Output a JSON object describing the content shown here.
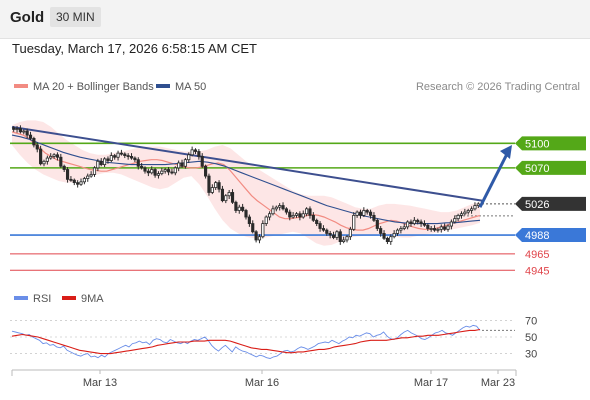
{
  "header": {
    "title": "Gold",
    "timeframe": "30 MIN"
  },
  "datetime": "Tuesday, March 17, 2026 6:58:15 AM CET",
  "legend": {
    "ma20": "MA 20 + Bollinger Bands",
    "ma50": "MA 50",
    "credit": "Research © 2026 Trading Central",
    "rsi": "RSI",
    "rsi_ma": "9MA"
  },
  "colors": {
    "ma20": "#f28b82",
    "ma50": "#2f4f8f",
    "bollinger_fill": "#fde0e0",
    "resistance": "#54a818",
    "support": "#3a78d8",
    "target": "#e0454b",
    "current": "#333333",
    "trendline": "#3d4f8f",
    "rsi": "#6a8ee8",
    "rsi_ma": "#d91e18",
    "candle": "#2a2a2a"
  },
  "chart_data": [
    {
      "type": "candlestick",
      "instrument": "Gold",
      "timeframe": "30 MIN",
      "xlabel": "",
      "ylabel": "",
      "x_ticks": [
        "Mar 13",
        "Mar 16",
        "Mar 17",
        "Mar 23"
      ],
      "y_range": [
        4938,
        5148
      ],
      "price_levels": [
        {
          "label": "5100",
          "value": 5100,
          "kind": "resistance"
        },
        {
          "label": "5070",
          "value": 5070,
          "kind": "resistance"
        },
        {
          "label": "5026",
          "value": 5026,
          "kind": "current"
        },
        {
          "label": "4988",
          "value": 4988,
          "kind": "support"
        },
        {
          "label": "4965",
          "value": 4965,
          "kind": "target"
        },
        {
          "label": "4945",
          "value": 4945,
          "kind": "target"
        }
      ],
      "close_series": [
        5117,
        5118,
        5114,
        5115,
        5110,
        5106,
        5098,
        5093,
        5075,
        5078,
        5082,
        5084,
        5086,
        5083,
        5072,
        5068,
        5056,
        5055,
        5052,
        5050,
        5053,
        5057,
        5060,
        5062,
        5070,
        5078,
        5074,
        5081,
        5079,
        5085,
        5083,
        5088,
        5087,
        5085,
        5084,
        5082,
        5080,
        5072,
        5070,
        5066,
        5064,
        5068,
        5061,
        5063,
        5066,
        5068,
        5065,
        5064,
        5070,
        5076,
        5072,
        5080,
        5086,
        5092,
        5090,
        5084,
        5072,
        5060,
        5040,
        5046,
        5052,
        5044,
        5030,
        5036,
        5040,
        5028,
        5018,
        5022,
        5018,
        5010,
        5002,
        4992,
        4982,
        4986,
        5002,
        5010,
        5014,
        5020,
        5022,
        5024,
        5020,
        5016,
        5010,
        5012,
        5014,
        5010,
        5014,
        5020,
        5012,
        5006,
        5002,
        4996,
        4994,
        4990,
        4988,
        4985,
        4992,
        4980,
        4982,
        4986,
        4995,
        5012,
        5016,
        5012,
        5018,
        5016,
        5012,
        5006,
        4996,
        4990,
        4984,
        4980,
        4986,
        4990,
        4994,
        4996,
        4998,
        5004,
        5002,
        5006,
        5004,
        5002,
        5000,
        4996,
        4996,
        4994,
        4995,
        4998,
        4995,
        4999,
        5004,
        5008,
        5012,
        5014,
        5016,
        5018,
        5020,
        5024,
        5026
      ],
      "ma20": [
        5114,
        5112,
        5110,
        5106,
        5100,
        5094,
        5088,
        5084,
        5080,
        5078,
        5076,
        5074,
        5072,
        5070,
        5068,
        5067,
        5066,
        5066,
        5068,
        5070,
        5072,
        5074,
        5076,
        5078,
        5079,
        5080,
        5080,
        5079,
        5077,
        5075,
        5073,
        5071,
        5070,
        5070,
        5071,
        5073,
        5075,
        5076,
        5074,
        5068,
        5060,
        5052,
        5044,
        5036,
        5030,
        5025,
        5020,
        5015,
        5010,
        5008,
        5008,
        5009,
        5010,
        5012,
        5013,
        5012,
        5010,
        5007,
        5004,
        5000,
        4997,
        4995,
        4994,
        4994,
        4996,
        4999,
        5002,
        5004,
        5006,
        5005,
        5003,
        5000,
        4998,
        4996,
        4995,
        4995,
        4996,
        4998,
        5000,
        5002,
        5004,
        5006,
        5008,
        5010,
        5012
      ],
      "bollinger_upper": [
        5122,
        5126,
        5128,
        5128,
        5126,
        5120,
        5112,
        5104,
        5098,
        5092,
        5088,
        5086,
        5086,
        5088,
        5090,
        5092,
        5094,
        5096,
        5096,
        5096,
        5094,
        5092,
        5090,
        5090,
        5090,
        5092,
        5096,
        5098,
        5094,
        5086,
        5078,
        5072,
        5066,
        5060,
        5054,
        5048,
        5042,
        5038,
        5036,
        5036,
        5036,
        5034,
        5030,
        5026,
        5022,
        5020,
        5020,
        5024,
        5026,
        5026,
        5025,
        5024,
        5022,
        5020,
        5018,
        5016,
        5016,
        5018,
        5022,
        5026,
        5028
      ],
      "bollinger_lower": [
        5098,
        5086,
        5076,
        5068,
        5062,
        5058,
        5054,
        5052,
        5052,
        5056,
        5060,
        5062,
        5064,
        5064,
        5062,
        5058,
        5054,
        5050,
        5046,
        5044,
        5046,
        5052,
        5058,
        5060,
        5050,
        5036,
        5020,
        5006,
        4996,
        4990,
        4986,
        4984,
        4984,
        4986,
        4988,
        4990,
        4992,
        4990,
        4984,
        4978,
        4975,
        4976,
        4980,
        4984,
        4986,
        4987,
        4988,
        4989,
        4988,
        4986,
        4985,
        4985,
        4987,
        4989,
        4990,
        4992,
        4994,
        4996,
        4998,
        5000,
        5003
      ],
      "ma50": [
        5110,
        5108,
        5105,
        5101,
        5097,
        5093,
        5089,
        5086,
        5083,
        5081,
        5079,
        5077,
        5076,
        5075,
        5074,
        5074,
        5074,
        5074,
        5074,
        5075,
        5076,
        5077,
        5078,
        5077,
        5075,
        5072,
        5068,
        5064,
        5060,
        5056,
        5052,
        5048,
        5044,
        5040,
        5036,
        5032,
        5028,
        5024,
        5021,
        5018,
        5015,
        5012,
        5010,
        5008,
        5006,
        5004,
        5003,
        5002,
        5002,
        5002,
        5002,
        5003,
        5003,
        5004,
        5005,
        5006
      ]
    },
    {
      "type": "line",
      "title": "RSI",
      "xlabel": "",
      "ylabel": "",
      "y_ticks": [
        70,
        50,
        30
      ],
      "y_range": [
        15,
        85
      ],
      "series": [
        {
          "name": "RSI",
          "values": [
            57,
            56,
            55,
            54,
            52,
            53,
            50,
            48,
            46,
            42,
            43,
            40,
            41,
            38,
            37,
            39,
            34,
            32,
            30,
            28,
            27,
            29,
            30,
            26,
            27,
            25,
            28,
            26,
            30,
            32,
            34,
            36,
            38,
            40,
            38,
            42,
            43,
            45,
            43,
            44,
            41,
            46,
            48,
            47,
            44,
            43,
            47,
            45,
            43,
            42,
            44,
            42,
            45,
            47,
            46,
            48,
            50,
            46,
            40,
            36,
            33,
            37,
            40,
            36,
            32,
            38,
            35,
            33,
            32,
            30,
            28,
            26,
            28,
            27,
            25,
            24,
            26,
            27,
            30,
            33,
            34,
            32,
            33,
            36,
            38,
            37,
            35,
            37,
            39,
            42,
            43,
            44,
            43,
            46,
            44,
            42,
            45,
            47,
            50,
            49,
            52,
            51,
            53,
            55,
            54,
            50,
            52,
            53,
            56,
            51,
            48,
            47,
            49,
            53,
            56,
            58,
            55,
            53,
            51,
            48,
            47,
            49,
            52,
            55,
            56,
            58,
            55,
            54,
            52,
            55,
            58,
            61,
            63,
            62,
            64,
            63,
            58
          ]
        },
        {
          "name": "9MA",
          "values": [
            51,
            52,
            53,
            52,
            51,
            50,
            48,
            46,
            44,
            42,
            40,
            38,
            36,
            34,
            33,
            32,
            31,
            30,
            30,
            30,
            31,
            32,
            33,
            34,
            35,
            36,
            37,
            38,
            40,
            41,
            42,
            43,
            44,
            44,
            44,
            45,
            45,
            45,
            46,
            46,
            46,
            46,
            45,
            43,
            41,
            39,
            37,
            36,
            35,
            35,
            34,
            33,
            32,
            31,
            31,
            32,
            32,
            33,
            34,
            35,
            35,
            36,
            38,
            39,
            40,
            41,
            42,
            44,
            45,
            46,
            46,
            46,
            46,
            47,
            48,
            49,
            49,
            50,
            51,
            51,
            52,
            52,
            52,
            53,
            54,
            55,
            56,
            57,
            58,
            58,
            59
          ]
        }
      ]
    }
  ]
}
